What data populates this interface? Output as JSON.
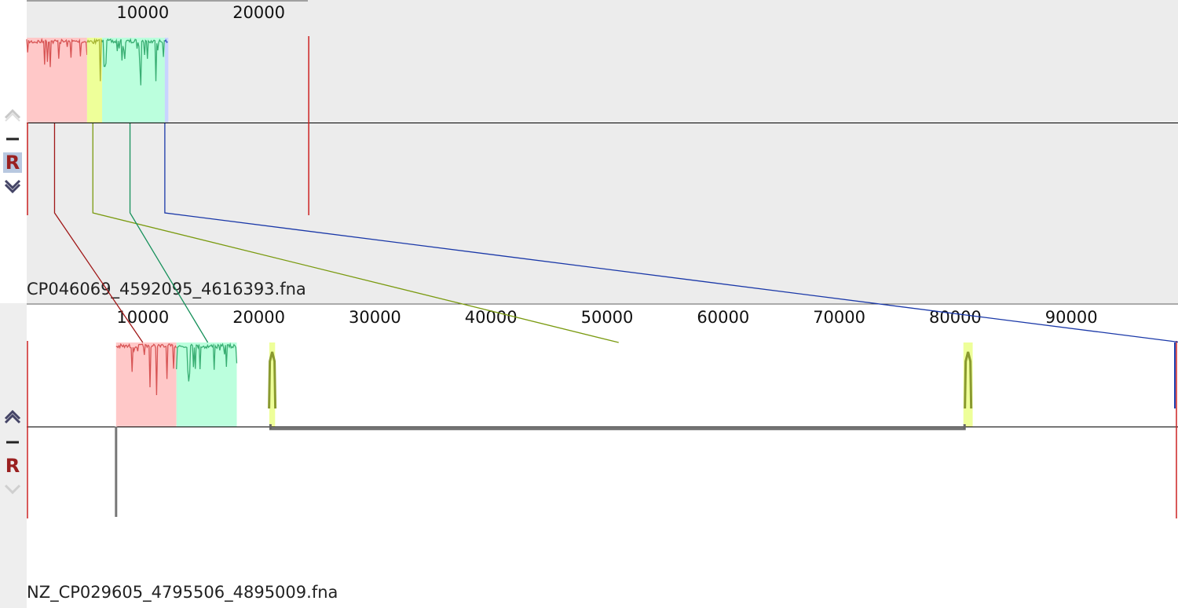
{
  "tracks": [
    {
      "name": "CP046069_4592095_4616393.fna",
      "ruler_ticks": [
        "10000",
        "20000"
      ],
      "ruler_tick_values": [
        10000,
        20000
      ],
      "scale_max": 24298,
      "controls": {
        "up": "up-arrow",
        "minus": "minus",
        "reverse": "R",
        "down": "down-arrow"
      }
    },
    {
      "name": "NZ_CP029605_4795506_4895009.fna",
      "ruler_ticks": [
        "10000",
        "20000",
        "30000",
        "40000",
        "50000",
        "60000",
        "70000",
        "80000",
        "90000"
      ],
      "ruler_tick_values": [
        10000,
        20000,
        30000,
        40000,
        50000,
        60000,
        70000,
        80000,
        90000
      ],
      "scale_max": 99503,
      "controls": {
        "up": "up-arrow",
        "minus": "minus",
        "reverse": "R",
        "down": "down-arrow"
      }
    }
  ],
  "blocks": [
    {
      "color": "#d04040",
      "fill": "#ffc8c8",
      "top": [
        0,
        5200
      ],
      "bottom": [
        7700,
        12900
      ]
    },
    {
      "color": "#9aa820",
      "fill": "#eeff99",
      "top": [
        5200,
        6500
      ],
      "bottom": [
        21000,
        21300
      ]
    },
    {
      "color": "#22a060",
      "fill": "#bbffdd",
      "top": [
        6500,
        11900
      ],
      "bottom": [
        12900,
        18100
      ]
    },
    {
      "color": "#2040b0",
      "fill": "#c8d4ff",
      "top": [
        11900,
        12200
      ],
      "bottom": [
        99300,
        99503
      ]
    }
  ],
  "connectors": [
    {
      "color": "#a01818",
      "top": 2400,
      "bottom": 10000
    },
    {
      "color": "#7a9a10",
      "top": 5700,
      "bottom": 51000
    },
    {
      "color": "#16905a",
      "top": 8900,
      "bottom": 15600
    },
    {
      "color": "#1a38a8",
      "top": 11900,
      "bottom": 99503
    }
  ],
  "colors": {
    "top_background": "#ececec",
    "bottom_background": "#ffffff",
    "gray_feature": "#777777"
  }
}
